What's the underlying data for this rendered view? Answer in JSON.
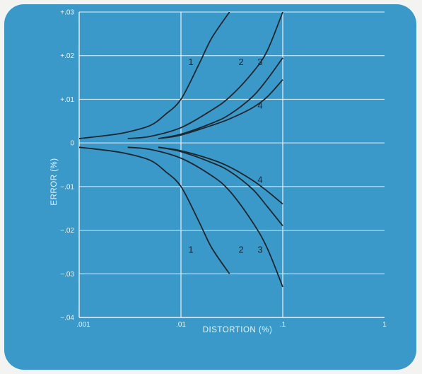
{
  "chart_data": {
    "type": "line",
    "xlabel": "DISTORTION (%)",
    "ylabel": "ERROR (%)",
    "x_scale": "log",
    "xlim": [
      0.001,
      1
    ],
    "ylim": [
      -0.04,
      0.03
    ],
    "x_ticks": [
      ".001",
      ".01",
      ".1",
      "1"
    ],
    "y_ticks": [
      "+.03",
      "+.02",
      "+.01",
      "0",
      "−.01",
      "−.02",
      "−.03",
      "−.04"
    ],
    "grid": true,
    "series": [
      {
        "name": "1",
        "label": "1",
        "x": [
          0.001,
          0.002,
          0.003,
          0.005,
          0.007,
          0.01,
          0.015,
          0.02,
          0.03
        ],
        "y": [
          0.001,
          0.0018,
          0.0025,
          0.004,
          0.0065,
          0.01,
          0.018,
          0.024,
          0.03
        ]
      },
      {
        "name": "2",
        "label": "2",
        "x": [
          0.003,
          0.005,
          0.01,
          0.02,
          0.03,
          0.05,
          0.07,
          0.1
        ],
        "y": [
          0.001,
          0.0015,
          0.0035,
          0.0075,
          0.0105,
          0.016,
          0.021,
          0.03
        ]
      },
      {
        "name": "3",
        "label": "3",
        "x": [
          0.006,
          0.01,
          0.02,
          0.03,
          0.05,
          0.07,
          0.1
        ],
        "y": [
          0.001,
          0.002,
          0.0045,
          0.0065,
          0.0105,
          0.0145,
          0.0195
        ]
      },
      {
        "name": "4",
        "label": "4",
        "x": [
          0.006,
          0.01,
          0.02,
          0.03,
          0.05,
          0.07,
          0.1
        ],
        "y": [
          0.001,
          0.0018,
          0.004,
          0.0055,
          0.008,
          0.0105,
          0.0145
        ]
      },
      {
        "name": "1",
        "label": "1",
        "x": [
          0.001,
          0.002,
          0.003,
          0.005,
          0.007,
          0.01,
          0.015,
          0.02,
          0.03
        ],
        "y": [
          -0.001,
          -0.0018,
          -0.0025,
          -0.004,
          -0.0065,
          -0.01,
          -0.018,
          -0.024,
          -0.03
        ]
      },
      {
        "name": "2",
        "label": "2",
        "x": [
          0.003,
          0.005,
          0.01,
          0.02,
          0.03,
          0.05,
          0.07,
          0.1
        ],
        "y": [
          -0.001,
          -0.0015,
          -0.0035,
          -0.0075,
          -0.011,
          -0.018,
          -0.024,
          -0.033
        ]
      },
      {
        "name": "3",
        "label": "3",
        "x": [
          0.006,
          0.01,
          0.02,
          0.03,
          0.05,
          0.07,
          0.1
        ],
        "y": [
          -0.001,
          -0.002,
          -0.0045,
          -0.0065,
          -0.0105,
          -0.0145,
          -0.019
        ]
      },
      {
        "name": "4",
        "label": "4",
        "x": [
          0.006,
          0.01,
          0.02,
          0.03,
          0.05,
          0.07,
          0.1
        ],
        "y": [
          -0.001,
          -0.0018,
          -0.0038,
          -0.0055,
          -0.0085,
          -0.011,
          -0.014
        ]
      }
    ],
    "colors": {
      "panel": "#3a99c9",
      "grid": "#e8f3fa",
      "curve": "#1d2730"
    }
  }
}
